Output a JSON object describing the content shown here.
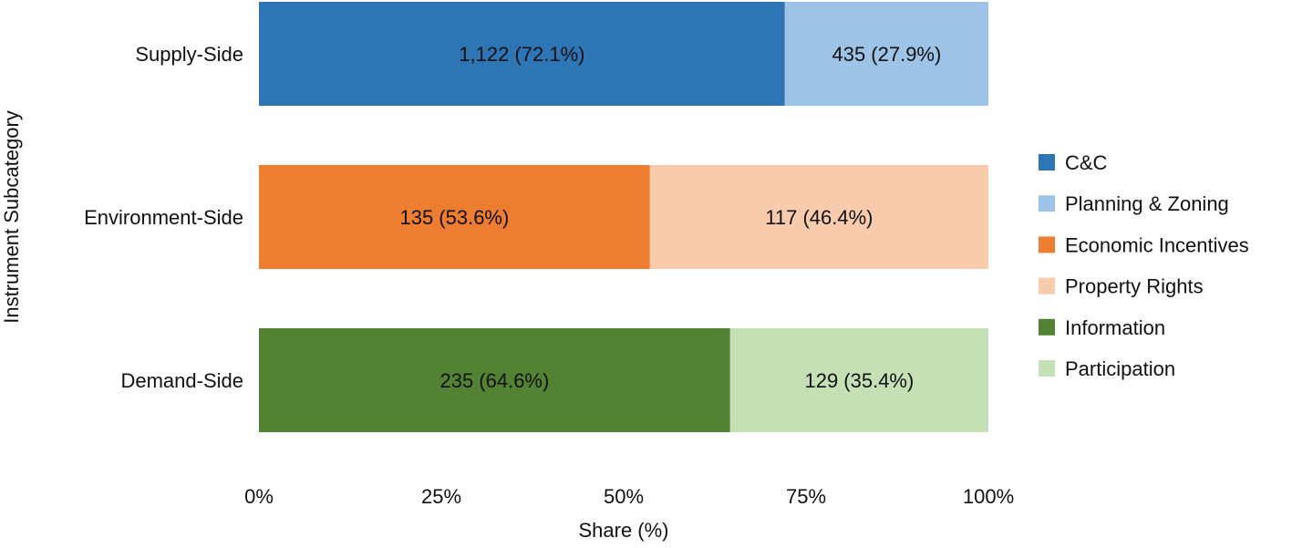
{
  "chart_data": {
    "type": "bar",
    "orientation": "horizontal",
    "stacked": "percent",
    "title": "",
    "xlabel": "Share (%)",
    "ylabel": "Instrument Subcategory",
    "xlim": [
      0,
      100
    ],
    "x_ticks": [
      "0%",
      "25%",
      "50%",
      "75%",
      "100%"
    ],
    "grid": false,
    "legend_position": "right",
    "categories": [
      "Supply-Side",
      "Environment-Side",
      "Demand-Side"
    ],
    "bars": [
      {
        "category": "Supply-Side",
        "segments": [
          {
            "series": "C&C",
            "count": 1122,
            "percent": 72.1,
            "label": "1,122 (72.1%)",
            "color": "#2e75b6"
          },
          {
            "series": "Planning & Zoning",
            "count": 435,
            "percent": 27.9,
            "label": "435 (27.9%)",
            "color": "#9dc3e6"
          }
        ]
      },
      {
        "category": "Environment-Side",
        "segments": [
          {
            "series": "Economic Incentives",
            "count": 135,
            "percent": 53.6,
            "label": "135 (53.6%)",
            "color": "#ed7d31"
          },
          {
            "series": "Property Rights",
            "count": 117,
            "percent": 46.4,
            "label": "117 (46.4%)",
            "color": "#f8cbad"
          }
        ]
      },
      {
        "category": "Demand-Side",
        "segments": [
          {
            "series": "Information",
            "count": 235,
            "percent": 64.6,
            "label": "235 (64.6%)",
            "color": "#548235"
          },
          {
            "series": "Participation",
            "count": 129,
            "percent": 35.4,
            "label": "129 (35.4%)",
            "color": "#c5e0b4"
          }
        ]
      }
    ],
    "legend": [
      {
        "name": "C&C",
        "color": "#2e75b6"
      },
      {
        "name": "Planning & Zoning",
        "color": "#9dc3e6"
      },
      {
        "name": "Economic Incentives",
        "color": "#ed7d31"
      },
      {
        "name": "Property Rights",
        "color": "#f8cbad"
      },
      {
        "name": "Information",
        "color": "#548235"
      },
      {
        "name": "Participation",
        "color": "#c5e0b4"
      }
    ]
  }
}
